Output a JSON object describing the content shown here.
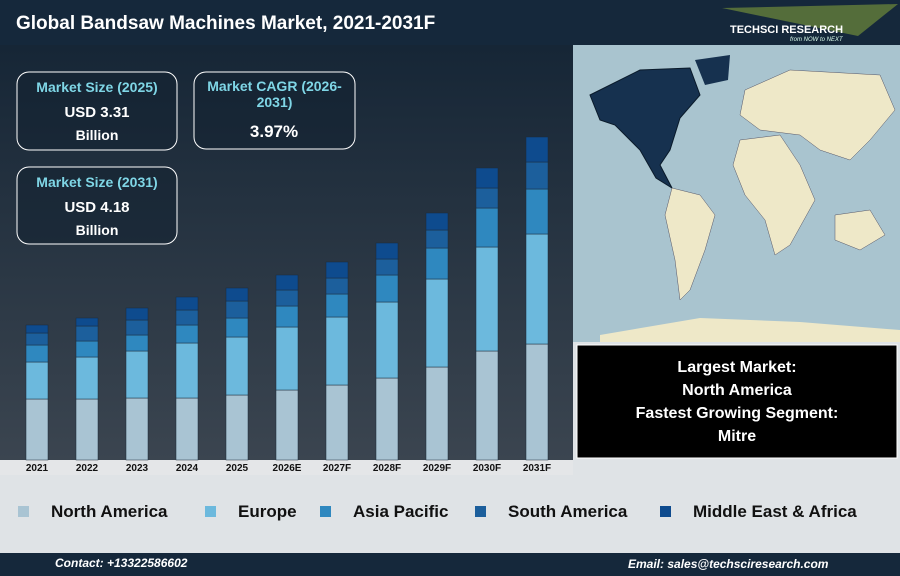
{
  "chart_data": {
    "type": "bar",
    "stacked": true,
    "title": "Global Bandsaw Machines Market, 2021-2031F",
    "categories": [
      "2021",
      "2022",
      "2023",
      "2024",
      "2025",
      "2026E",
      "2027F",
      "2028F",
      "2029F",
      "2030F",
      "2031F"
    ],
    "series": [
      {
        "name": "North America",
        "color": "#a9c4d3",
        "values": [
          61,
          61,
          62,
          62,
          65,
          70,
          75,
          82,
          93,
          109,
          116
        ]
      },
      {
        "name": "Europe",
        "color": "#6cb9dd",
        "values": [
          37,
          42,
          47,
          55,
          58,
          63,
          68,
          76,
          88,
          104,
          110
        ]
      },
      {
        "name": "Asia Pacific",
        "color": "#2f88bf",
        "values": [
          17,
          16,
          16,
          18,
          19,
          21,
          23,
          27,
          31,
          39,
          45
        ]
      },
      {
        "name": "South America",
        "color": "#1c5f9c",
        "values": [
          12,
          15,
          15,
          15,
          17,
          16,
          16,
          16,
          18,
          20,
          27
        ]
      },
      {
        "name": "Middle East & Africa",
        "color": "#0e4b8e",
        "values": [
          8,
          8,
          12,
          13,
          13,
          15,
          16,
          16,
          17,
          20,
          25
        ]
      }
    ]
  },
  "logo": {
    "name": "TECHSCI RESEARCH",
    "tagline": "from NOW to NEXT"
  },
  "info_boxes": [
    {
      "label": "Market Size (2025)",
      "value": "USD 3.31",
      "unit": "Billion"
    },
    {
      "label": "Market CAGR (2026-2031)",
      "value": "3.97%"
    },
    {
      "label": "Market Size (2031)",
      "value": "USD 4.18",
      "unit": "Billion"
    }
  ],
  "callout": {
    "lines": [
      "Largest Market:",
      "North America",
      "Fastest Growing Segment:",
      "Mitre"
    ]
  },
  "footer": {
    "contact": "Contact: +13322586602",
    "email": "Email: sales@techsciresearch.com"
  }
}
